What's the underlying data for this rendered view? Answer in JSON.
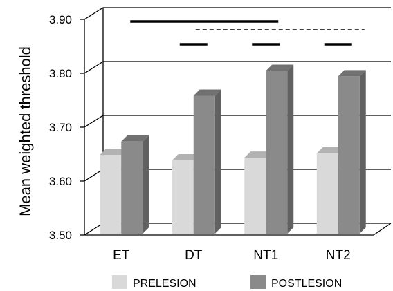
{
  "chart_data": {
    "type": "bar",
    "title": "",
    "xlabel": "",
    "ylabel": "Mean weighted threshold",
    "categories": [
      "ET",
      "DT",
      "NT1",
      "NT2"
    ],
    "series": [
      {
        "name": "PRELESION",
        "values": [
          3.642,
          3.632,
          3.637,
          3.645
        ],
        "color": "#d9d9d9"
      },
      {
        "name": "POSTLESION",
        "values": [
          3.667,
          3.752,
          3.798,
          3.788
        ],
        "color": "#8a8a8a"
      }
    ],
    "ylim": [
      3.5,
      3.9
    ],
    "yticks": [
      3.5,
      3.6,
      3.7,
      3.8,
      3.9
    ],
    "ytick_labels": [
      "3.50",
      "3.60",
      "3.70",
      "3.80",
      "3.90"
    ],
    "grid": true,
    "legend": "bottom",
    "significance_lines": [
      {
        "from": "ET",
        "to": "NT1",
        "style": "solid",
        "level": 1
      },
      {
        "from": "DT",
        "to": "NT2",
        "style": "dashed",
        "level": 2
      },
      {
        "category": "DT",
        "style": "solid",
        "level": 3
      },
      {
        "category": "NT1",
        "style": "solid",
        "level": 3
      },
      {
        "category": "NT2",
        "style": "solid",
        "level": 3
      }
    ]
  }
}
